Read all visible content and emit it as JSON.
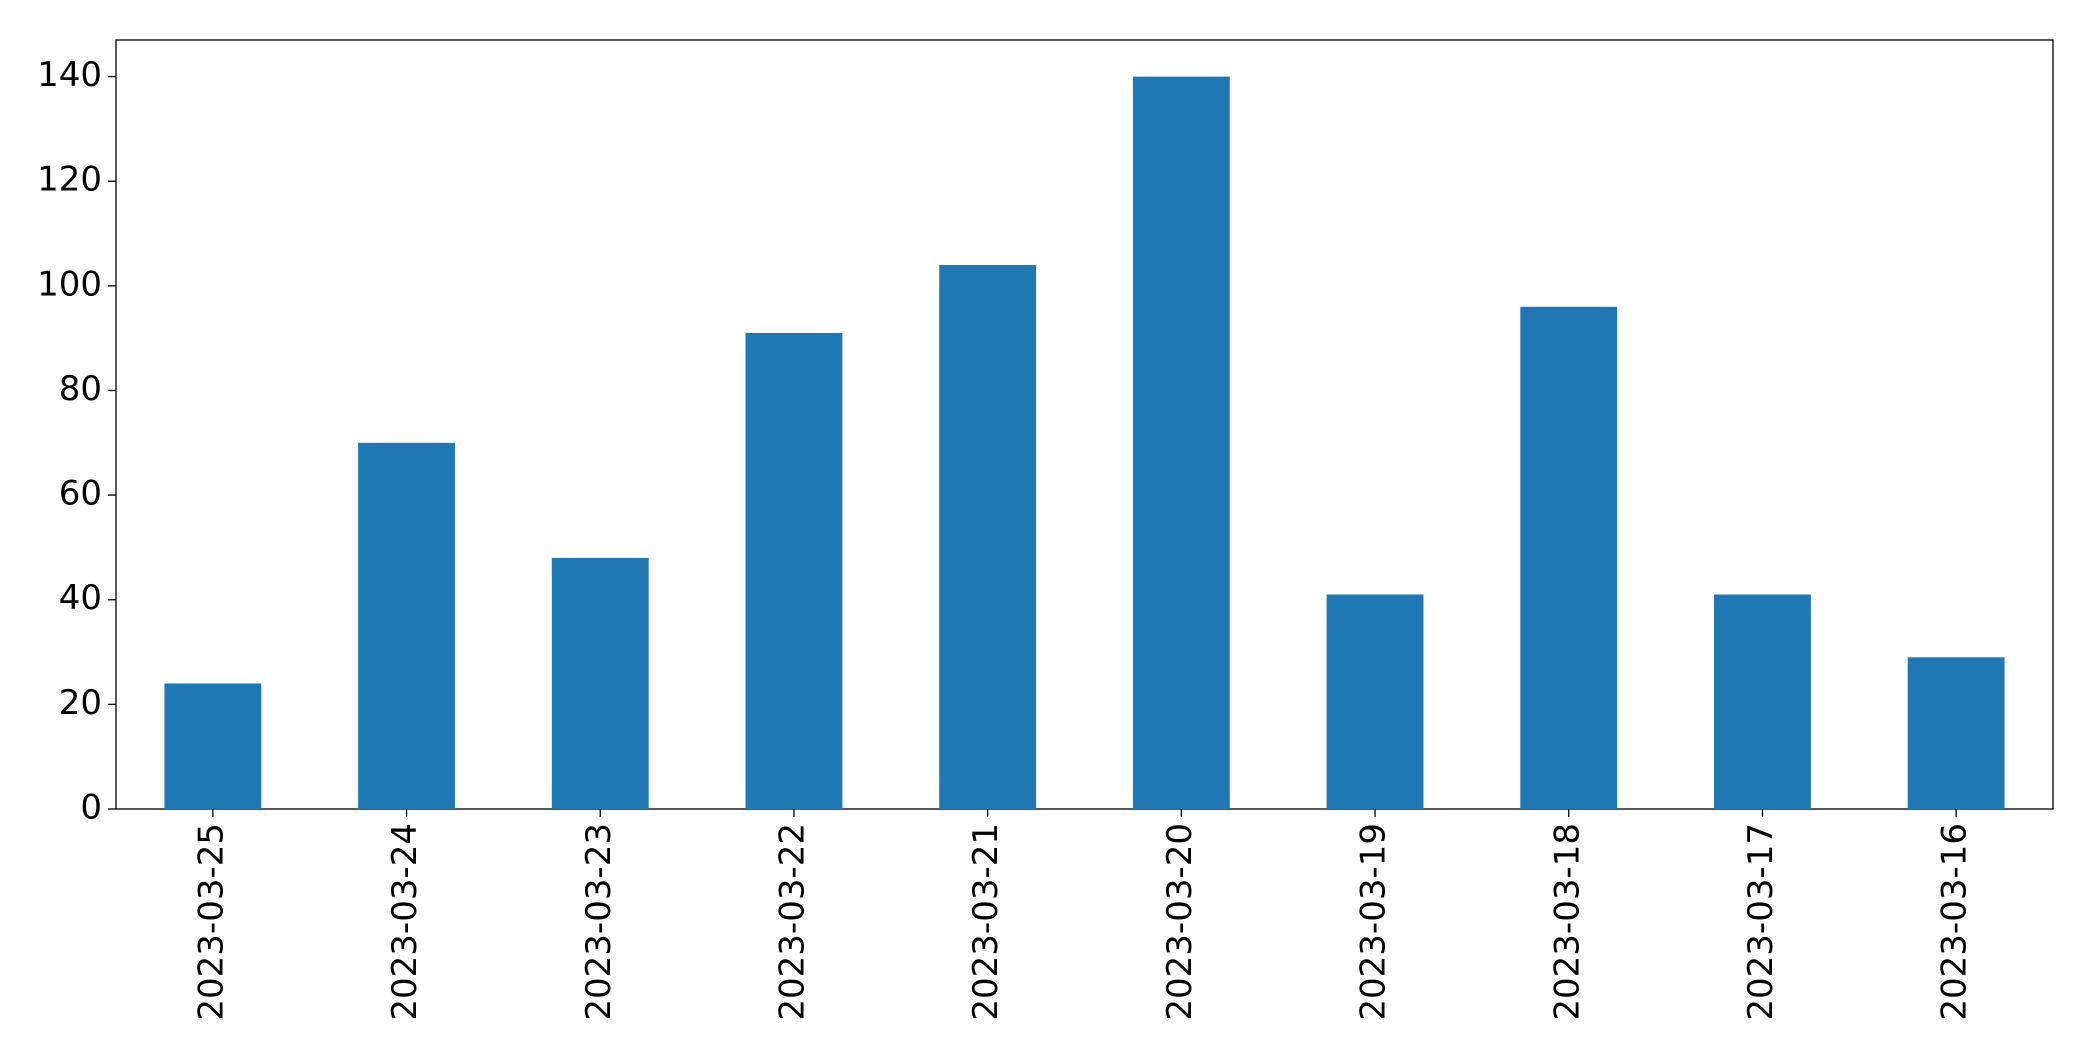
{
  "chart_data": {
    "type": "bar",
    "categories": [
      "2023-03-25",
      "2023-03-24",
      "2023-03-23",
      "2023-03-22",
      "2023-03-21",
      "2023-03-20",
      "2023-03-19",
      "2023-03-18",
      "2023-03-17",
      "2023-03-16"
    ],
    "values": [
      24,
      70,
      48,
      91,
      104,
      140,
      41,
      96,
      41,
      29
    ],
    "color": "#1f77b4",
    "ylim": [
      0,
      147
    ],
    "yticks": [
      0,
      20,
      40,
      60,
      80,
      100,
      120,
      140
    ],
    "grid": false
  }
}
